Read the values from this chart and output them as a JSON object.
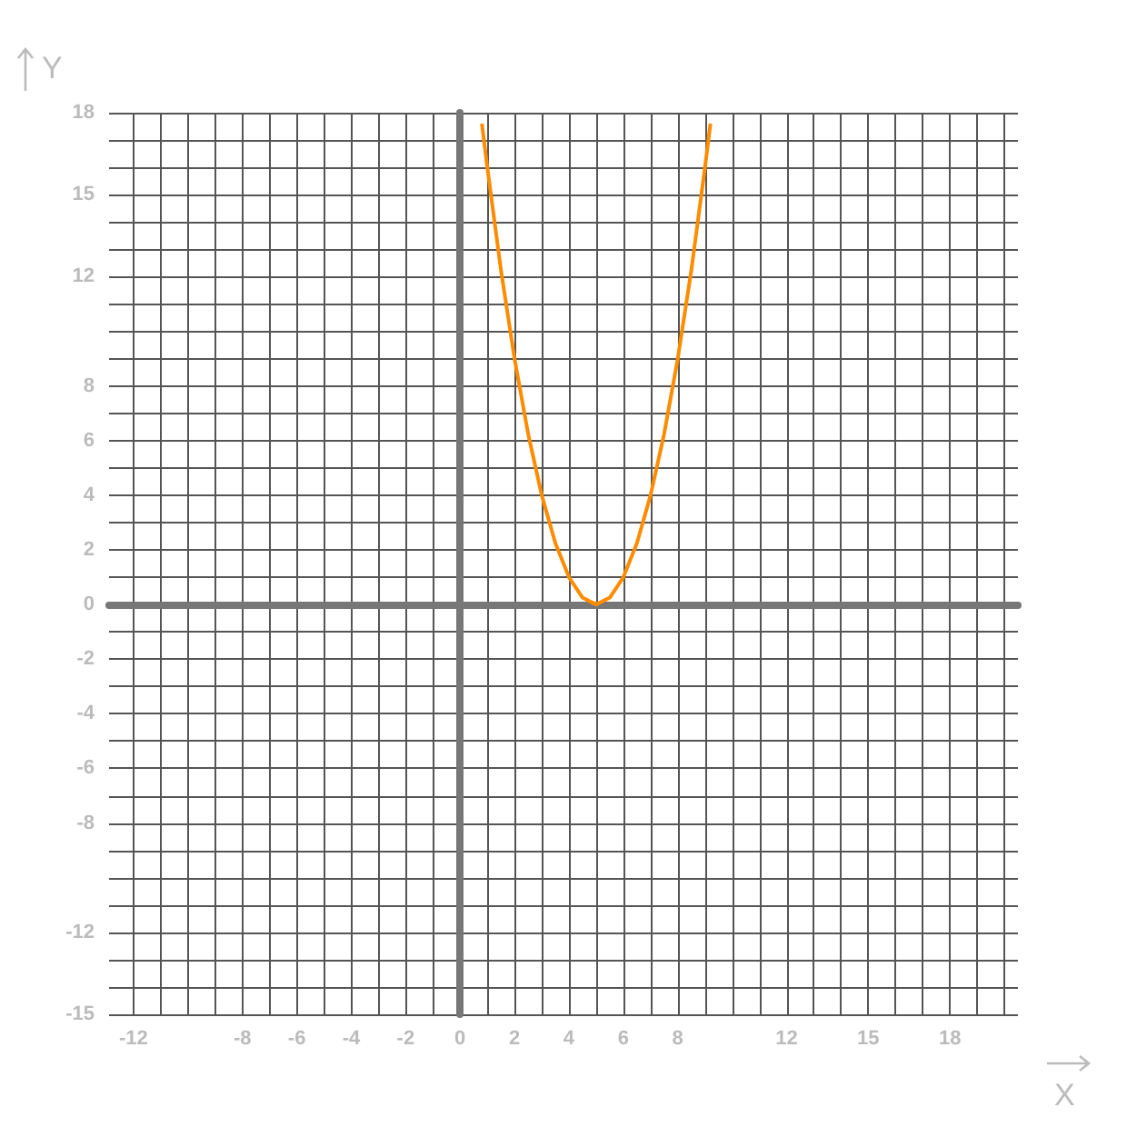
{
  "chart_data": {
    "type": "line",
    "xlabel": "X",
    "ylabel": "Y",
    "x": [
      0.8,
      1,
      1.5,
      2,
      2.5,
      3,
      3.5,
      4,
      4.5,
      5,
      5.5,
      6,
      6.5,
      7,
      7.5,
      8,
      8.5,
      9,
      9.2
    ],
    "series": [
      {
        "color": "#ff8c00",
        "values": [
          17.6,
          16,
          12.25,
          9,
          6.25,
          4,
          2.25,
          1,
          0.25,
          0,
          0.25,
          1,
          2.25,
          4,
          6.25,
          9,
          12.25,
          16,
          17.6
        ]
      }
    ],
    "xlim": [
      -12.9,
      20.5
    ],
    "ylim": [
      -15,
      18
    ],
    "xticks": [
      -12,
      {
        "value": -11,
        "label": null
      },
      {
        "value": -10,
        "label": null
      },
      {
        "value": -9,
        "label": null
      },
      -8,
      {
        "value": -7,
        "label": null
      },
      -6,
      {
        "value": -5,
        "label": null
      },
      -4,
      {
        "value": -3,
        "label": null
      },
      -2,
      {
        "value": -1,
        "label": null
      },
      0,
      {
        "value": 1,
        "label": null
      },
      2,
      {
        "value": 3,
        "label": null
      },
      4,
      {
        "value": 5,
        "label": null
      },
      6,
      {
        "value": 7,
        "label": null
      },
      8,
      {
        "value": 9,
        "label": null
      },
      {
        "value": 10,
        "label": null
      },
      {
        "value": 11,
        "label": null
      },
      12,
      {
        "value": 13,
        "label": null
      },
      {
        "value": 14,
        "label": null
      },
      15,
      {
        "value": 16,
        "label": null
      },
      {
        "value": 17,
        "label": null
      },
      18,
      {
        "value": 19,
        "label": null
      },
      {
        "value": 20,
        "label": null
      }
    ],
    "yticks": [
      -15,
      {
        "value": -14,
        "label": null
      },
      {
        "value": -13,
        "label": null
      },
      -12,
      {
        "value": -11,
        "label": null
      },
      {
        "value": -10,
        "label": null
      },
      {
        "value": -9,
        "label": null
      },
      -8,
      {
        "value": -7,
        "label": null
      },
      -6,
      {
        "value": -5,
        "label": null
      },
      -4,
      {
        "value": -3,
        "label": null
      },
      -2,
      {
        "value": -1,
        "label": null
      },
      0,
      {
        "value": 1,
        "label": null
      },
      2,
      {
        "value": 3,
        "label": null
      },
      4,
      {
        "value": 5,
        "label": null
      },
      6,
      {
        "value": 7,
        "label": null
      },
      8,
      {
        "value": 9,
        "label": null
      },
      {
        "value": 10,
        "label": null
      },
      {
        "value": 11,
        "label": null
      },
      12,
      {
        "value": 13,
        "label": null
      },
      {
        "value": 14,
        "label": null
      },
      15,
      {
        "value": 16,
        "label": null
      },
      {
        "value": 17,
        "label": null
      },
      18
    ],
    "grid": true,
    "marker": "none",
    "line_style": "solid"
  }
}
